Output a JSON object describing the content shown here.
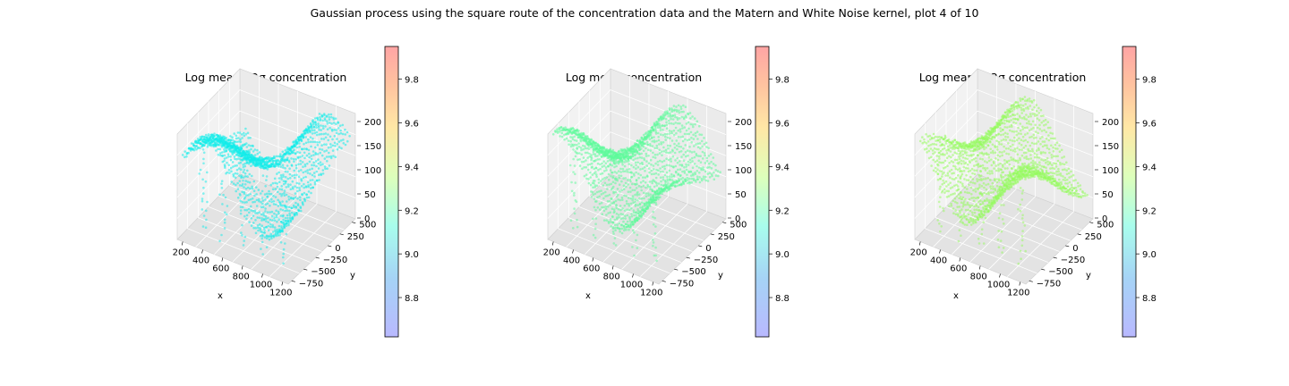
{
  "figure": {
    "suptitle": "Gaussian process using the square route of the concentration data and the Matern and White Noise kernel, plot 4 of 10"
  },
  "chart_data": [
    {
      "type": "scatter3d",
      "title": "Log mean - 2σ concentration",
      "xlabel": "x",
      "ylabel": "y",
      "x_ticks": [
        "200",
        "400",
        "600",
        "800",
        "1000",
        "1200"
      ],
      "y_ticks": [
        "500",
        "250",
        "0",
        "−250",
        "−500",
        "−750"
      ],
      "z_ticks": [
        "0",
        "50",
        "100",
        "150",
        "200"
      ],
      "point_color": "#10ecea",
      "colorbar": {
        "ticks": [
          "8.8",
          "9.0",
          "9.2",
          "9.4",
          "9.6",
          "9.8"
        ],
        "range": [
          8.62,
          9.95
        ]
      }
    },
    {
      "type": "scatter3d",
      "title": "Log mean concentration",
      "xlabel": "x",
      "ylabel": "y",
      "x_ticks": [
        "200",
        "400",
        "600",
        "800",
        "1000",
        "1200"
      ],
      "y_ticks": [
        "500",
        "250",
        "0",
        "−250",
        "−500",
        "−750"
      ],
      "z_ticks": [
        "0",
        "50",
        "100",
        "150",
        "200"
      ],
      "point_color": "#5cfb9a",
      "colorbar": {
        "ticks": [
          "8.8",
          "9.0",
          "9.2",
          "9.4",
          "9.6",
          "9.8"
        ],
        "range": [
          8.62,
          9.95
        ]
      }
    },
    {
      "type": "scatter3d",
      "title": "Log mean + 2σ concentration",
      "xlabel": "x",
      "ylabel": "y",
      "x_ticks": [
        "200",
        "400",
        "600",
        "800",
        "1000",
        "1200"
      ],
      "y_ticks": [
        "500",
        "250",
        "0",
        "−250",
        "−500",
        "−750"
      ],
      "z_ticks": [
        "0",
        "50",
        "100",
        "150",
        "200"
      ],
      "point_color": "#96fb5e",
      "colorbar": {
        "ticks": [
          "8.8",
          "9.0",
          "9.2",
          "9.4",
          "9.6",
          "9.8"
        ],
        "range": [
          8.62,
          9.95
        ]
      }
    }
  ]
}
